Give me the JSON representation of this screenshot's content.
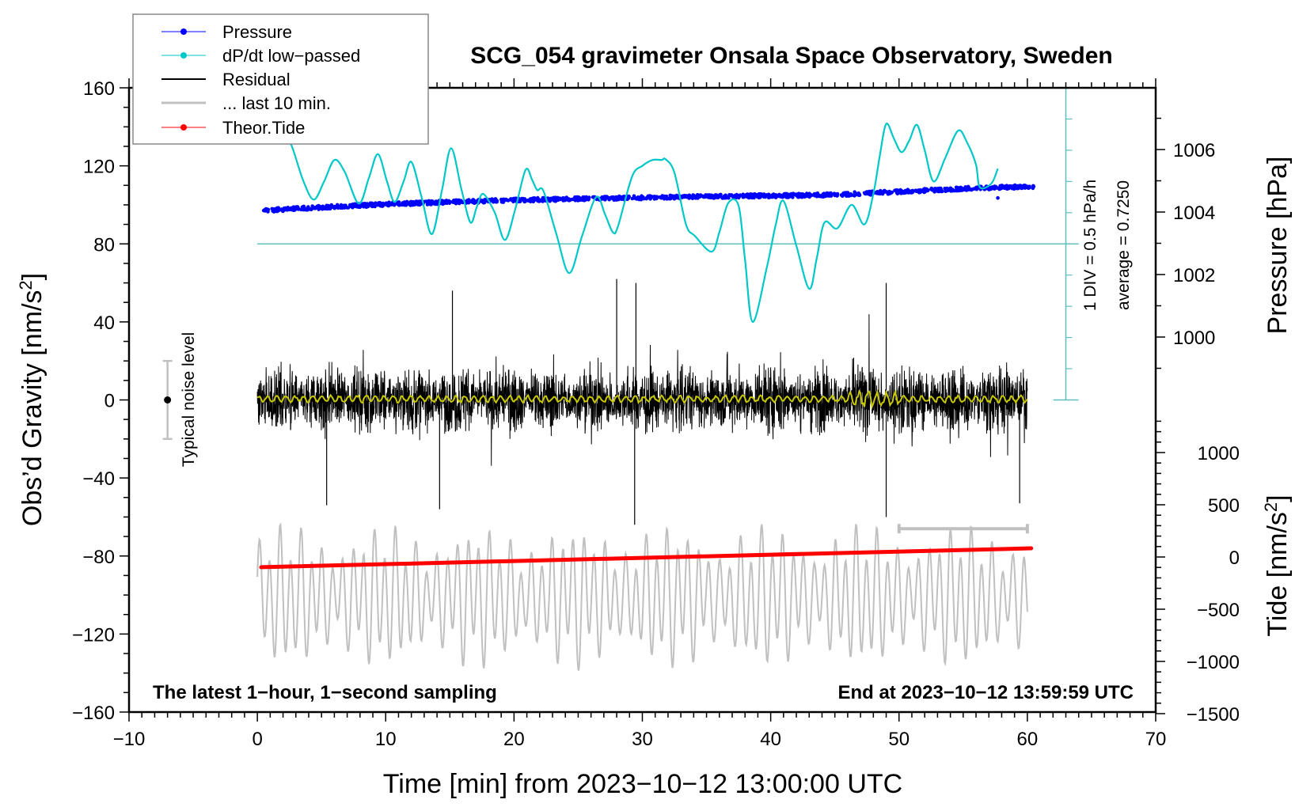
{
  "chart_data": {
    "type": "line",
    "title": "SCG_054 gravimeter Onsala Space Observatory, Sweden",
    "xlabel": "Time [min] from 2023−10−12 13:00:00 UTC",
    "ylabel": "Obs’d Gravity [nm/s²]",
    "ylabel_main": "Obs’d Gravity [nm/s",
    "ylabel_sup": "2",
    "ylabel_end": "]",
    "xlim": [
      -10,
      70
    ],
    "ylim": [
      -160,
      160
    ],
    "x_ticks": [
      -10,
      0,
      10,
      20,
      30,
      40,
      50,
      60,
      70
    ],
    "x_tick_labels": [
      "−10",
      "0",
      "10",
      "20",
      "30",
      "40",
      "50",
      "60",
      "70"
    ],
    "y_ticks": [
      160,
      120,
      80,
      40,
      0,
      -40,
      -80,
      -120,
      -160
    ],
    "y_tick_labels": [
      "160",
      "120",
      "80",
      "40",
      "0",
      "−40",
      "−80",
      "−120",
      "−160"
    ],
    "grid": false,
    "legend_position": "top-left",
    "legend": [
      {
        "label": "Pressure",
        "color": "#0000ff",
        "style": "line-dot"
      },
      {
        "label": "dP/dt low−passed",
        "color": "#00c8c8",
        "style": "line-dot"
      },
      {
        "label": "Residual",
        "color": "#000000",
        "style": "line"
      },
      {
        "label": "... last 10 min.",
        "color": "#c0c0c0",
        "style": "thick-line"
      },
      {
        "label": "Theor.Tide",
        "color": "#ff0000",
        "style": "line-dot"
      }
    ],
    "pressure_axis": {
      "label_main": "Pressure [hPa]",
      "ticks": [
        1006,
        1004,
        1002,
        1000
      ],
      "tick_labels": [
        "1006",
        "1004",
        "1002",
        "1000"
      ],
      "minor_ticks": [
        1007,
        1005,
        1003,
        1001,
        999
      ]
    },
    "tide_axis": {
      "label_main": "Tide [nm/s",
      "label_sup": "2",
      "label_end": "]",
      "ticks": [
        1000,
        500,
        0,
        -500,
        -1000,
        -1500
      ],
      "tick_labels": [
        "1000",
        "500",
        "0",
        "−500",
        "−1000",
        "−1500"
      ]
    },
    "series": [
      {
        "name": "Pressure",
        "axis": "pressure",
        "unit": "hPa",
        "color": "#0000ff",
        "x": [
          0.5,
          5,
          10,
          15,
          20,
          25,
          30,
          35,
          40,
          45,
          50,
          55,
          60.5
        ],
        "values": [
          1004.05,
          1004.15,
          1004.25,
          1004.32,
          1004.38,
          1004.42,
          1004.46,
          1004.5,
          1004.52,
          1004.55,
          1004.65,
          1004.75,
          1004.82
        ],
        "scatter_spread_hpa": 0.12
      },
      {
        "name": "dP/dt low-passed",
        "axis": "gravity-plot-units",
        "note": "plotted relative to scale bar: 1 DIV = 0.5 hPa/h",
        "color": "#00c8c8",
        "baseline_y": 80,
        "x": [
          2.2,
          2.8,
          3.6,
          4.4,
          5.2,
          6.0,
          6.8,
          7.9,
          8.7,
          9.4,
          10.1,
          10.7,
          11.4,
          12.0,
          12.8,
          13.6,
          14.4,
          15.1,
          15.9,
          16.6,
          17.1,
          17.6,
          18.5,
          19.3,
          20.1,
          20.9,
          21.4,
          21.8,
          22.3,
          23.3,
          24.3,
          25.3,
          26.4,
          27.1,
          27.7,
          28.1,
          29.2,
          30.0,
          30.8,
          31.5,
          31.8,
          32.5,
          33.4,
          34.1,
          35.4,
          36.0,
          36.7,
          37.5,
          38.0,
          38.6,
          39.7,
          40.4,
          41.0,
          42.0,
          43.0,
          43.6,
          44.2,
          45.2,
          46.3,
          47.3,
          48.0,
          48.5,
          49.0,
          49.6,
          50.2,
          50.8,
          51.4,
          52.0,
          52.7,
          53.6,
          54.6,
          55.3,
          56.0,
          56.3,
          57.2,
          57.7
        ],
        "values": [
          138,
          128,
          112,
          102.7,
          112,
          123,
          117,
          100.7,
          114,
          126,
          112,
          101.5,
          112,
          122,
          104,
          85,
          108,
          129,
          108,
          91,
          99,
          105.6,
          96,
          82,
          98,
          118,
          113,
          107.6,
          107,
          85,
          65,
          84,
          104,
          95,
          86,
          89,
          114.5,
          120,
          123,
          123,
          123.4,
          116.5,
          90,
          84,
          76,
          86,
          101,
          99.5,
          72,
          40,
          68,
          90,
          102,
          79,
          57,
          73,
          91,
          88,
          100,
          90,
          105.6,
          125,
          141.5,
          134,
          127,
          133,
          141,
          128,
          112,
          124,
          138,
          132,
          120.6,
          109,
          111,
          118.6
        ]
      },
      {
        "name": "Residual",
        "axis": "gravity",
        "unit": "nm/s^2",
        "color": "#000000",
        "x_range": [
          0,
          60
        ],
        "mean": 0,
        "typical_envelope": 25,
        "extremes": [
          {
            "x": 28.0,
            "value": 62
          },
          {
            "x": 29.4,
            "value": -64
          },
          {
            "x": 29.5,
            "value": 60
          },
          {
            "x": 49.0,
            "value": 60
          },
          {
            "x": 49.0,
            "value": -60
          },
          {
            "x": 14.2,
            "value": -56
          },
          {
            "x": 15.2,
            "value": 56
          },
          {
            "x": 5.4,
            "value": -54
          },
          {
            "x": 59.4,
            "value": -53
          }
        ]
      },
      {
        "name": "Residual smoothed",
        "axis": "gravity",
        "color": "#c8c800",
        "x_range": [
          0,
          60
        ],
        "mean": 0.5,
        "amplitude": 2
      },
      {
        "name": "... last 10 min.",
        "axis": "gravity",
        "color": "#c0c0c0",
        "x_range": [
          0,
          60
        ],
        "offset": -101,
        "amplitude": 38
      },
      {
        "name": "Theor.Tide",
        "axis": "tide",
        "unit": "nm/s^2",
        "color": "#ff0000",
        "x": [
          0.3,
          60.3
        ],
        "values": [
          -98,
          83
        ]
      }
    ],
    "annotations": {
      "noise_level": {
        "label": "Typical noise level",
        "x": -7,
        "center": 0,
        "half_range": 20
      },
      "last10_bar": {
        "x_start": 50,
        "x_end": 60,
        "y": -66
      },
      "scale_bar": {
        "x": 63,
        "y_bottom": 0,
        "y_top": 160,
        "baseline_y": 80,
        "text1": "1 DIV = 0.5 hPa/h",
        "text2": "average = 0.7250"
      },
      "bottom_left": "The latest 1−hour, 1−second sampling",
      "bottom_right": "End at 2023−10−12 13:59:59 UTC"
    }
  }
}
